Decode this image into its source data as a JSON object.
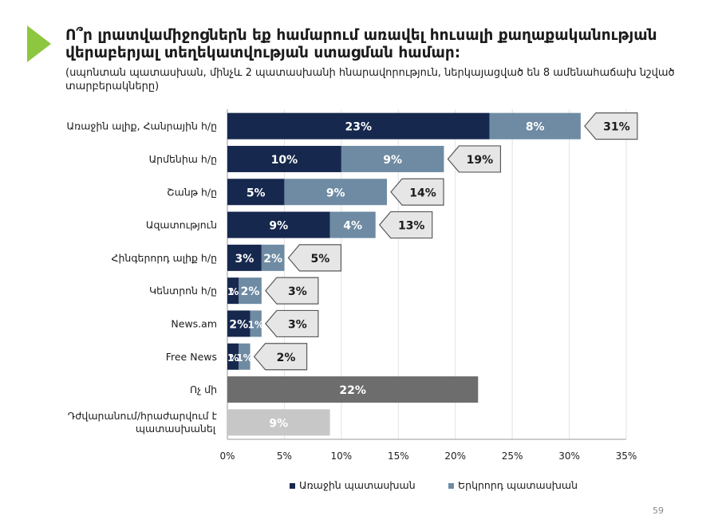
{
  "header": {
    "title": "Ո՞ր լրատվամիջոցներն եք համարում առավել հուսալի քաղաքականության վերաբերյալ տեղեկատվության ստացման համար:",
    "subtitle": "(սպոնտան պատասխան, մինչև 2 պատասխանի հնարավորություն, ներկայացված են 8 ամենահաճախ նշված տարբերակները)"
  },
  "footer": {
    "page_number": "59"
  },
  "colors": {
    "accent_green": "#8dc63f",
    "first_answer": "#16284d",
    "second_answer": "#6e8ba3",
    "none": "#6d6d6d",
    "hard_to_answer": "#c7c7c7",
    "total_callout_fill": "#e6e6e6"
  },
  "chart_data": {
    "type": "bar",
    "orientation": "horizontal",
    "stacked": true,
    "categories": [
      "Առաջին ալիք, Հանրային հ/ը",
      "Արմենիա հ/ը",
      "Շանթ հ/ը",
      "Ազատություն",
      "Հինգերորդ ալիք հ/ը",
      "Կենտրոն հ/ը",
      "News.am",
      "Free News",
      "Ոչ մի",
      "Դժվարանում/հրաժարվում է պատասխանել"
    ],
    "series": [
      {
        "name": "Առաջին պատասխան",
        "values": [
          23,
          10,
          5,
          9,
          3,
          1,
          2,
          1,
          22,
          9
        ]
      },
      {
        "name": "Երկրորդ պատասխան",
        "values": [
          8,
          9,
          9,
          4,
          2,
          2,
          1,
          1,
          null,
          null
        ]
      }
    ],
    "totals": [
      31,
      19,
      14,
      13,
      5,
      3,
      3,
      2,
      null,
      null
    ],
    "x_ticks": [
      "0%",
      "5%",
      "10%",
      "15%",
      "20%",
      "25%",
      "30%",
      "35%"
    ],
    "xlim": [
      0,
      35
    ],
    "grid": true,
    "legend_position": "bottom",
    "legend": [
      "Առաջին պատասխան",
      "Երկրորդ պատասխան"
    ]
  }
}
